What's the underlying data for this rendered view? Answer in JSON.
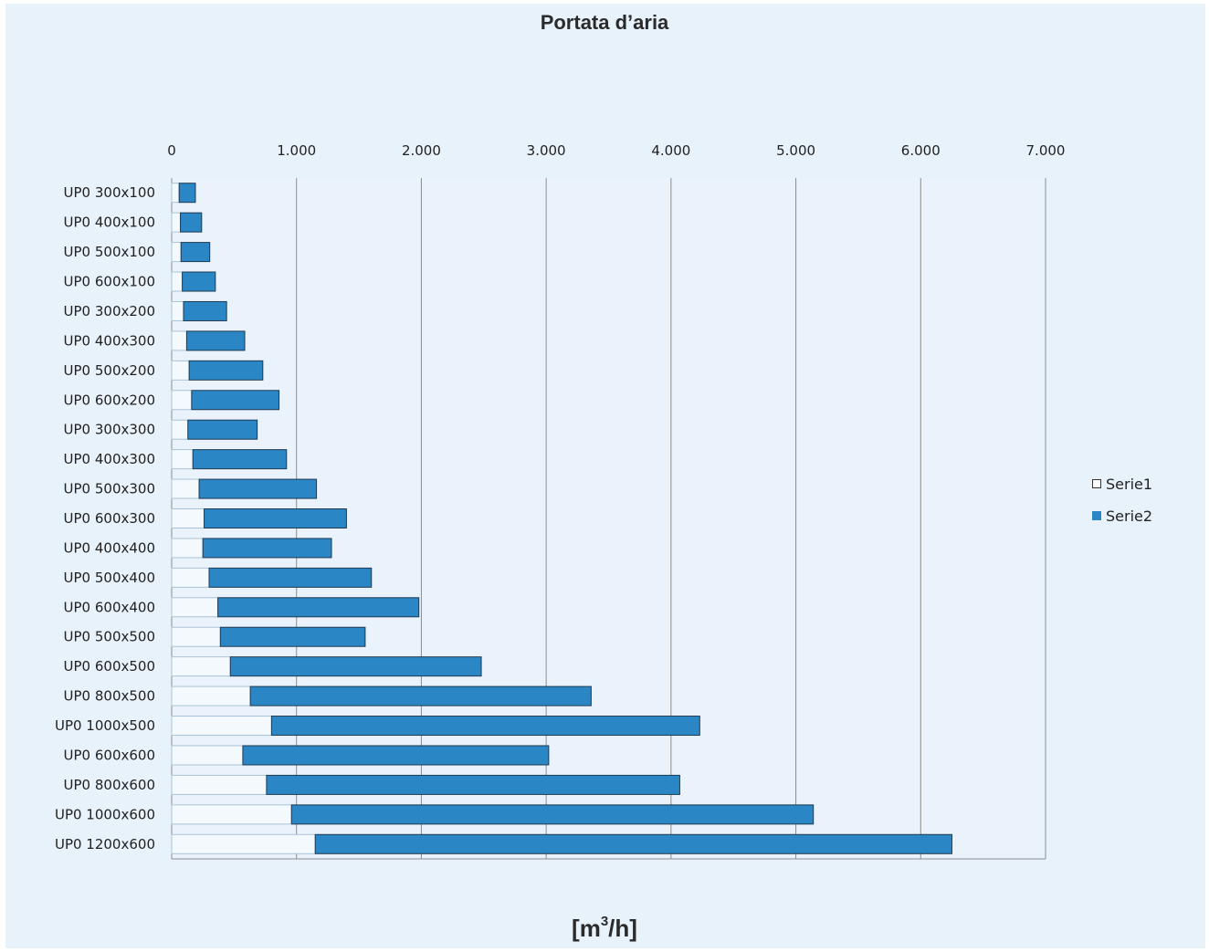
{
  "chart_data": {
    "type": "bar",
    "orientation": "horizontal",
    "stacked": true,
    "title": "Portata d’aria",
    "xlabel": "[m3/h]",
    "xlabel_base": "[m",
    "xlabel_sup": "3",
    "xlabel_tail": "/h]",
    "xlim": [
      0,
      7000
    ],
    "x_ticks": [
      "0",
      "1.000",
      "2.000",
      "3.000",
      "4.000",
      "5.000",
      "6.000",
      "7.000"
    ],
    "x_tick_values": [
      0,
      1000,
      2000,
      3000,
      4000,
      5000,
      6000,
      7000
    ],
    "grid": true,
    "legend_position": "right",
    "categories": [
      "UP0 300x100",
      "UP0 400x100",
      "UP0 500x100",
      "UP0 600x100",
      "UP0 300x200",
      "UP0 400x300",
      "UP0 500x200",
      "UP0 600x200",
      "UP0 300x300",
      "UP0 400x300",
      "UP0 500x300",
      "UP0 600x300",
      "UP0 400x400",
      "UP0 500x400",
      "UP0 600x400",
      "UP0 500x500",
      "UP0 600x500",
      "UP0 800x500",
      "UP0 1000x500",
      "UP0 600x600",
      "UP0 800x600",
      "UP0 1000x600",
      "UP0 1200x600"
    ],
    "series": [
      {
        "name": "Serie1",
        "color": "#f4f9fd",
        "values": [
          60,
          70,
          75,
          85,
          95,
          120,
          140,
          160,
          130,
          170,
          220,
          260,
          250,
          300,
          370,
          390,
          470,
          630,
          800,
          570,
          760,
          960,
          1150
        ]
      },
      {
        "name": "Serie2",
        "color": "#2b86c6",
        "values": [
          130,
          170,
          230,
          265,
          345,
          465,
          590,
          700,
          555,
          750,
          940,
          1140,
          1030,
          1300,
          1610,
          1160,
          2010,
          2730,
          3430,
          2450,
          3310,
          4180,
          5100
        ]
      }
    ]
  }
}
